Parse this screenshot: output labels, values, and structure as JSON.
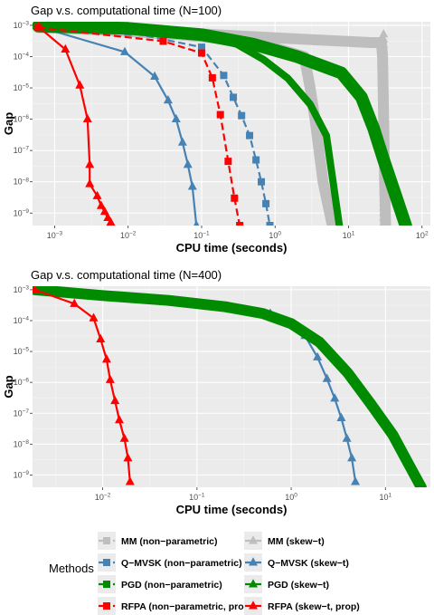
{
  "legend": {
    "title": "Methods",
    "entries": [
      {
        "key": "mm_np",
        "label": "MM (non−parametric)",
        "color": "#bebebe",
        "shape": "square",
        "dash": true
      },
      {
        "key": "mm_st",
        "label": "MM (skew−t)",
        "color": "#bebebe",
        "shape": "triangle",
        "dash": false
      },
      {
        "key": "qmvsk_np",
        "label": "Q−MVSK (non−parametric)",
        "color": "#4682b4",
        "shape": "square",
        "dash": true
      },
      {
        "key": "qmvsk_st",
        "label": "Q−MVSK (skew−t)",
        "color": "#4682b4",
        "shape": "triangle",
        "dash": false
      },
      {
        "key": "pgd_np",
        "label": "PGD (non−parametric)",
        "color": "#008b00",
        "shape": "square",
        "dash": true
      },
      {
        "key": "pgd_st",
        "label": "PGD (skew−t)",
        "color": "#008b00",
        "shape": "triangle",
        "dash": false
      },
      {
        "key": "rfpa_np",
        "label": "RFPA (non−parametric, prop)",
        "color": "#ff0000",
        "shape": "square",
        "dash": true
      },
      {
        "key": "rfpa_st",
        "label": "RFPA (skew−t, prop)",
        "color": "#ff0000",
        "shape": "triangle",
        "dash": false
      }
    ]
  },
  "chart_data": [
    {
      "type": "line",
      "title": "Gap v.s. computational time (N=100)",
      "xlabel": "CPU time (seconds)",
      "ylabel": "Gap",
      "xscale": "log",
      "yscale": "log",
      "xlim": [
        0.0005,
        130
      ],
      "ylim": [
        4e-10,
        0.0013
      ],
      "x_ticks": [
        {
          "v": 0.001,
          "m": "10",
          "e": "−3"
        },
        {
          "v": 0.01,
          "m": "10",
          "e": "−2"
        },
        {
          "v": 0.1,
          "m": "10",
          "e": "−1"
        },
        {
          "v": 1,
          "m": "10",
          "e": "0"
        },
        {
          "v": 10,
          "m": "10",
          "e": "1"
        },
        {
          "v": 100,
          "m": "10",
          "e": "2"
        }
      ],
      "y_ticks": [
        {
          "v": 0.001,
          "m": "10",
          "e": "−3"
        },
        {
          "v": 0.0001,
          "m": "10",
          "e": "−4"
        },
        {
          "v": 1e-05,
          "m": "10",
          "e": "−5"
        },
        {
          "v": 1e-06,
          "m": "10",
          "e": "−6"
        },
        {
          "v": 1e-07,
          "m": "10",
          "e": "−7"
        },
        {
          "v": 1e-08,
          "m": "10",
          "e": "−8"
        },
        {
          "v": 1e-09,
          "m": "10",
          "e": "−9"
        }
      ],
      "grid": true,
      "series": [
        {
          "key": "mm_np",
          "x": [
            0.0006,
            0.005,
            0.05,
            0.5,
            2.5,
            3.0,
            3.5,
            4.5,
            6.0
          ],
          "y": [
            0.00085,
            0.0007,
            0.0005,
            0.0003,
            0.0001,
            1e-05,
            1e-06,
            1e-08,
            4e-10
          ],
          "marker_every": 0,
          "band": 6
        },
        {
          "key": "mm_st",
          "x": [
            0.0006,
            0.01,
            1.0,
            20,
            28,
            29,
            30,
            31,
            32
          ],
          "y": [
            0.0009,
            0.0007,
            0.0004,
            0.00028,
            0.00028,
            0.0001,
            1e-06,
            1e-08,
            4e-10
          ],
          "marker_every": 0,
          "band": 6,
          "markers_x": [
            28,
            28.5,
            29,
            29.5,
            30,
            30.5,
            31,
            31.5,
            32
          ]
        },
        {
          "key": "qmvsk_np",
          "x": [
            0.0006,
            0.01,
            0.1,
            0.2,
            0.27,
            0.35,
            0.45,
            0.55,
            0.65,
            0.75,
            0.85
          ],
          "y": [
            0.00085,
            0.0006,
            0.0002,
            2.5e-05,
            5e-06,
            1.3e-06,
            3e-07,
            5e-08,
            1e-08,
            2e-09,
            4e-10
          ],
          "marker_every": 1
        },
        {
          "key": "qmvsk_st",
          "x": [
            0.0006,
            0.009,
            0.023,
            0.035,
            0.045,
            0.055,
            0.065,
            0.075,
            0.085
          ],
          "y": [
            0.0009,
            0.00014,
            2.3e-05,
            4e-06,
            1e-06,
            1.8e-07,
            3.5e-08,
            7e-09,
            4e-10
          ],
          "marker_every": 1
        },
        {
          "key": "pgd_np",
          "x": [
            0.0006,
            0.01,
            0.05,
            0.1,
            0.3,
            0.7,
            1.5,
            3.0,
            5.0,
            7.5
          ],
          "y": [
            0.00085,
            0.0007,
            0.0006,
            0.0005,
            0.00025,
            8e-05,
            2e-05,
            3e-06,
            3e-07,
            4e-10
          ],
          "marker_every": 0,
          "band": 4
        },
        {
          "key": "pgd_st",
          "x": [
            0.0006,
            0.01,
            0.1,
            0.5,
            2.0,
            8.0,
            15,
            22,
            30,
            45,
            60
          ],
          "y": [
            0.00095,
            0.0008,
            0.0005,
            0.00025,
            0.0001,
            3e-05,
            5e-06,
            5e-07,
            5e-08,
            3e-09,
            4e-10
          ],
          "marker_every": 0,
          "band": 7
        },
        {
          "key": "rfpa_np",
          "x": [
            0.0006,
            0.03,
            0.1,
            0.14,
            0.18,
            0.23,
            0.28,
            0.33
          ],
          "y": [
            0.00085,
            0.00031,
            0.00013,
            2.1e-05,
            1.4e-06,
            4.5e-08,
            3e-09,
            4e-10
          ],
          "marker_every": 1
        },
        {
          "key": "rfpa_st",
          "x": [
            0.0006,
            0.0014,
            0.0022,
            0.0028,
            0.003,
            0.003,
            0.0038,
            0.0043,
            0.0048,
            0.0053,
            0.0058
          ],
          "y": [
            0.0009,
            0.00017,
            1.2e-05,
            1e-06,
            3.5e-08,
            8.5e-09,
            3.5e-09,
            1.7e-09,
            1.1e-09,
            7e-10,
            5e-10
          ],
          "marker_every": 1
        }
      ]
    },
    {
      "type": "line",
      "title": "Gap v.s. computational time (N=400)",
      "xlabel": "CPU time (seconds)",
      "ylabel": "Gap",
      "xscale": "log",
      "yscale": "log",
      "xlim": [
        0.0018,
        30
      ],
      "ylim": [
        4e-10,
        0.0013
      ],
      "x_ticks": [
        {
          "v": 0.01,
          "m": "10",
          "e": "−2"
        },
        {
          "v": 0.1,
          "m": "10",
          "e": "−1"
        },
        {
          "v": 1,
          "m": "10",
          "e": "0"
        },
        {
          "v": 10,
          "m": "10",
          "e": "1"
        }
      ],
      "y_ticks": [
        {
          "v": 0.001,
          "m": "10",
          "e": "−3"
        },
        {
          "v": 0.0001,
          "m": "10",
          "e": "−4"
        },
        {
          "v": 1e-05,
          "m": "10",
          "e": "−5"
        },
        {
          "v": 1e-06,
          "m": "10",
          "e": "−6"
        },
        {
          "v": 1e-07,
          "m": "10",
          "e": "−7"
        },
        {
          "v": 1e-08,
          "m": "10",
          "e": "−8"
        },
        {
          "v": 1e-09,
          "m": "10",
          "e": "−9"
        }
      ],
      "grid": true,
      "series": [
        {
          "key": "qmvsk_st",
          "x": [
            0.0019,
            0.6,
            1.4,
            1.9,
            2.4,
            2.9,
            3.4,
            3.9,
            4.4,
            4.8
          ],
          "y": [
            0.001,
            0.00017,
            3.2e-05,
            6.5e-06,
            1.3e-06,
            3e-07,
            7e-08,
            1.5e-08,
            3.5e-09,
            6e-10
          ],
          "marker_every": 1
        },
        {
          "key": "pgd_st",
          "x": [
            0.0019,
            0.01,
            0.05,
            0.2,
            0.5,
            1.0,
            2.0,
            4.0,
            7.0,
            12,
            18,
            24
          ],
          "y": [
            0.001,
            0.00065,
            0.00045,
            0.00028,
            0.00017,
            8e-05,
            2e-05,
            2e-06,
            2e-07,
            2e-08,
            2e-09,
            4e-10
          ],
          "marker_every": 0,
          "band": 6,
          "marker_step": 0.02
        },
        {
          "key": "rfpa_st",
          "x": [
            0.0019,
            0.005,
            0.008,
            0.0095,
            0.011,
            0.012,
            0.0135,
            0.015,
            0.017,
            0.0185,
            0.0195
          ],
          "y": [
            0.001,
            0.00035,
            0.00012,
            2.5e-05,
            5.5e-06,
            1.2e-06,
            2.5e-07,
            6e-08,
            1.5e-08,
            3.5e-09,
            6e-10
          ],
          "marker_every": 1
        }
      ]
    }
  ]
}
